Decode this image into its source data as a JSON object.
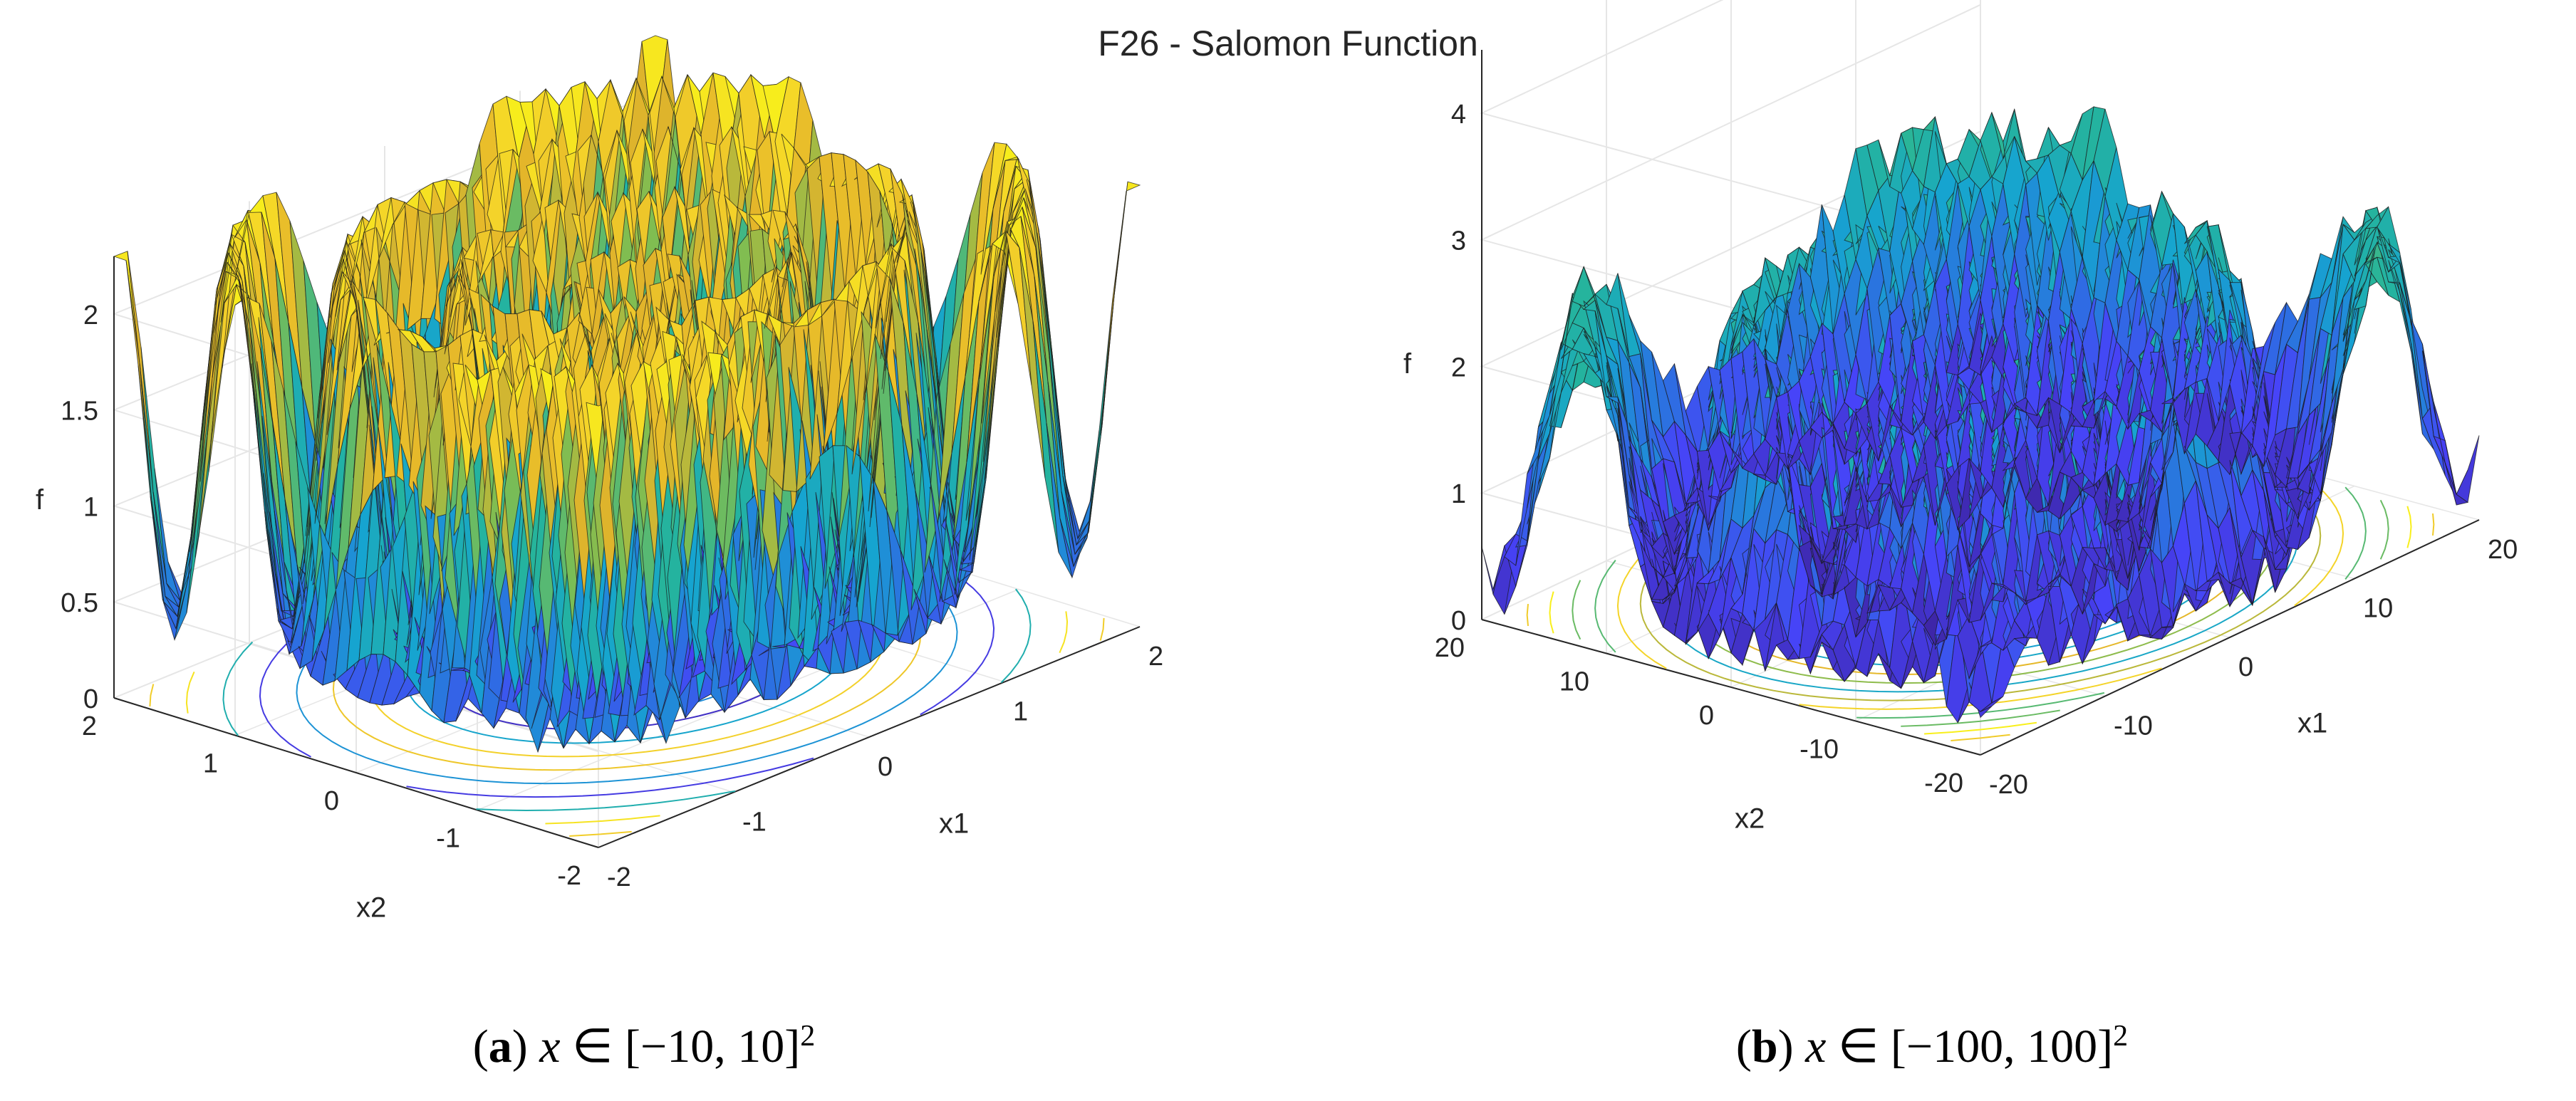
{
  "figure_title": "F26 - Salomon Function",
  "chart_data": [
    {
      "type": "surface3d",
      "panel": "a",
      "function": "Salomon",
      "x_range": [
        -2,
        2
      ],
      "y_range": [
        -2,
        2
      ],
      "zlim": [
        0,
        2.3
      ],
      "xlabel": "x1",
      "ylabel": "x2",
      "zlabel": "f",
      "x_ticks": [
        "-2",
        "-1",
        "0",
        "1",
        "2"
      ],
      "y_ticks": [
        "-2",
        "-1",
        "0",
        "1",
        "2"
      ],
      "z_ticks": [
        "0",
        "0.5",
        "1",
        "1.5",
        "2"
      ],
      "z_tick_values": [
        0,
        0.5,
        1,
        1.5,
        2
      ],
      "contour_projection": true,
      "colormap": "parula",
      "caption": {
        "letter": "a",
        "var": "x",
        "text": " ∈ [−10, 10]",
        "sup": "2"
      }
    },
    {
      "type": "surface3d",
      "panel": "b",
      "function": "Salomon",
      "x_range": [
        -20,
        20
      ],
      "y_range": [
        -20,
        20
      ],
      "zlim": [
        0,
        4.5
      ],
      "xlabel": "x1",
      "ylabel": "x2",
      "zlabel": "f",
      "x_ticks": [
        "-20",
        "-10",
        "0",
        "10",
        "20"
      ],
      "y_ticks": [
        "-20",
        "-10",
        "0",
        "10",
        "20"
      ],
      "z_ticks": [
        "0",
        "1",
        "2",
        "3",
        "4"
      ],
      "z_tick_values": [
        0,
        1,
        2,
        3,
        4
      ],
      "contour_projection": true,
      "colormap": "parula",
      "caption": {
        "letter": "b",
        "var": "x",
        "text": " ∈ [−100, 100]",
        "sup": "2"
      }
    }
  ],
  "colors": {
    "parula": [
      "#3e26a8",
      "#4743f8",
      "#2b72e0",
      "#16a4d0",
      "#25b49c",
      "#7ebd52",
      "#e3b42a",
      "#f4d22a",
      "#f9fb15"
    ],
    "axis": "#262626",
    "grid": "#e6e6e6",
    "mesh": "#1a1a1a"
  }
}
